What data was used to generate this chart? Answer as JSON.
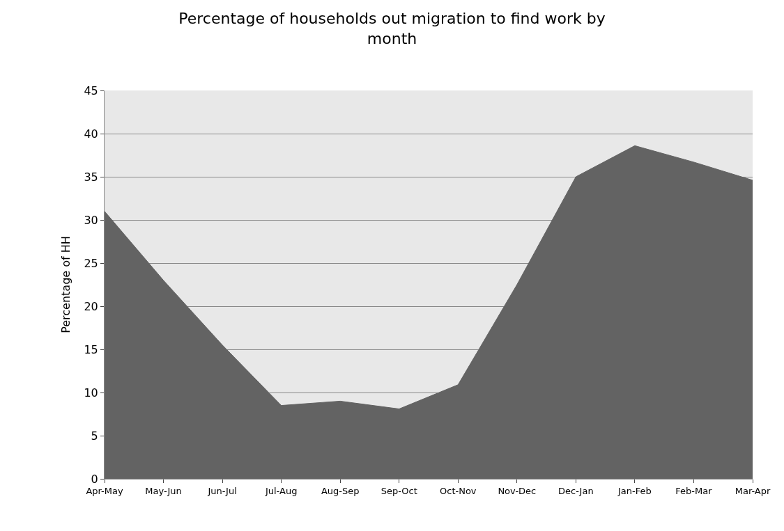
{
  "chart_data": {
    "type": "area",
    "title": "Percentage of households out migration to find work by month",
    "ylabel": "Percentage of HH",
    "categories": [
      "Apr-May",
      "May-Jun",
      "Jun-Jul",
      "Jul-Aug",
      "Aug-Sep",
      "Sep-Oct",
      "Oct-Nov",
      "Nov-Dec",
      "Dec-Jan",
      "Jan-Feb",
      "Feb-Mar",
      "Mar-Apr"
    ],
    "series": [
      {
        "color": "#636363",
        "values": [
          31.0,
          23.0,
          15.5,
          8.5,
          9.0,
          8.1,
          10.9,
          22.5,
          35.0,
          38.6,
          36.7,
          34.6
        ]
      }
    ],
    "ylim": [
      0,
      45
    ],
    "yticks": [
      0,
      5,
      10,
      15,
      20,
      25,
      30,
      35,
      40,
      45
    ],
    "grid": "y",
    "legend": false
  }
}
